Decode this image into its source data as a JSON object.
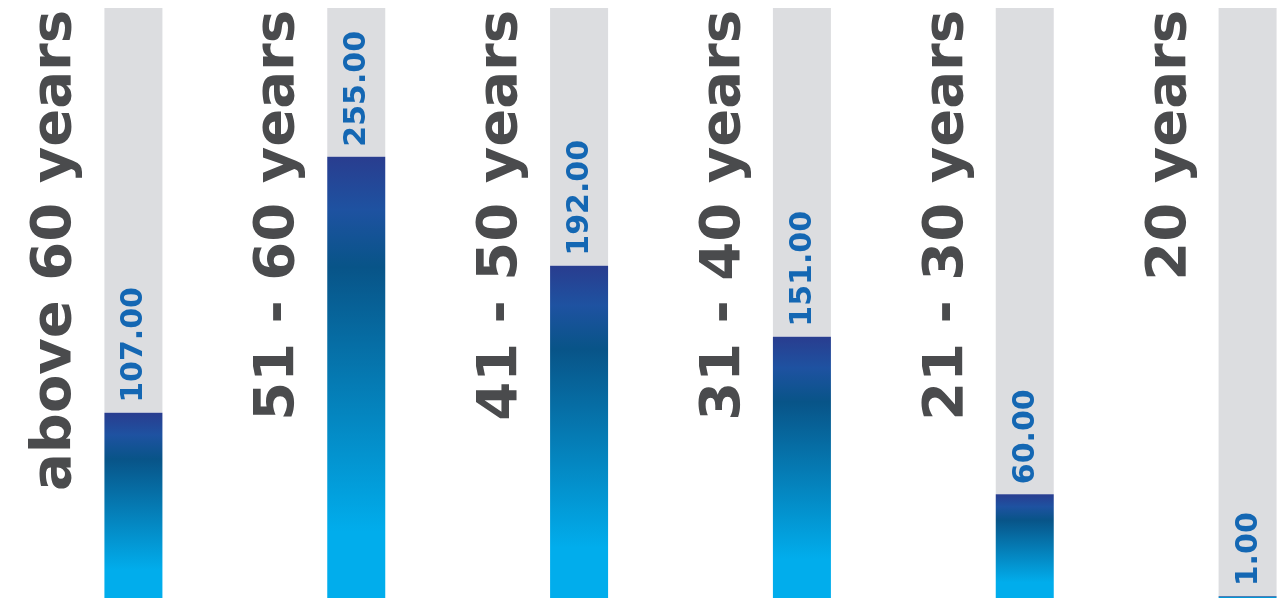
{
  "chart_data": {
    "type": "bar",
    "categories": [
      "above 60 years",
      "51 - 60 years",
      "41 - 50 years",
      "31 - 40 years",
      "21 - 30 years",
      "20 years"
    ],
    "values": [
      107,
      255,
      192,
      151,
      60,
      1
    ],
    "value_labels": [
      "107.00",
      "255.00",
      "192.00",
      "151.00",
      "60.00",
      "1.00"
    ],
    "color": "#0b78c2",
    "tick_labels": "x"
  }
}
